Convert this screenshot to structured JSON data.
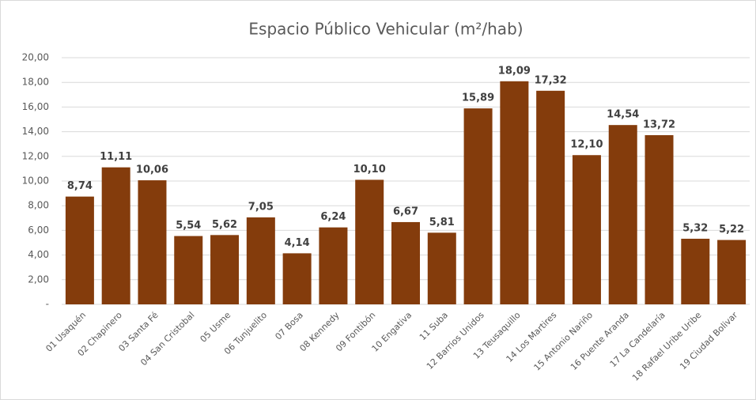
{
  "chart_data": {
    "type": "bar",
    "title": "Espacio Público Vehicular (m²/hab)",
    "categories": [
      "01 Usaquén",
      "02 Chapinero",
      "03 Santa Fé",
      "04 San Cristobal",
      "05 Usme",
      "06 Tunjuelito",
      "07 Bosa",
      "08 Kennedy",
      "09 Fontibón",
      "10 Engativa",
      "11 Suba",
      "12 Barrios Unidos",
      "13 Teusaquillo",
      "14 Los Martires",
      "15 Antonio Nariño",
      "16 Puente Aranda",
      "17 La Candelaría",
      "18 Rafael Uribe Uribe",
      "19 Ciudad Bolivar"
    ],
    "values": [
      8.74,
      11.11,
      10.06,
      5.54,
      5.62,
      7.05,
      4.14,
      6.24,
      10.1,
      6.67,
      5.81,
      15.89,
      18.09,
      17.32,
      12.1,
      14.54,
      13.72,
      5.32,
      5.22
    ],
    "value_labels": [
      "8,74",
      "11,11",
      "10,06",
      "5,54",
      "5,62",
      "7,05",
      "4,14",
      "6,24",
      "10,10",
      "6,67",
      "5,81",
      "15,89",
      "18,09",
      "17,32",
      "12,10",
      "14,54",
      "13,72",
      "5,32",
      "5,22"
    ],
    "color": "#843c0c",
    "ylim": [
      0,
      20
    ],
    "yticks": [
      {
        "value": 0,
        "label": "-"
      },
      {
        "value": 2,
        "label": "2,00"
      },
      {
        "value": 4,
        "label": "4,00"
      },
      {
        "value": 6,
        "label": "6,00"
      },
      {
        "value": 8,
        "label": "8,00"
      },
      {
        "value": 10,
        "label": "10,00"
      },
      {
        "value": 12,
        "label": "12,00"
      },
      {
        "value": 14,
        "label": "14,00"
      },
      {
        "value": 16,
        "label": "16,00"
      },
      {
        "value": 18,
        "label": "18,00"
      },
      {
        "value": 20,
        "label": "20,00"
      }
    ],
    "grid": true
  }
}
